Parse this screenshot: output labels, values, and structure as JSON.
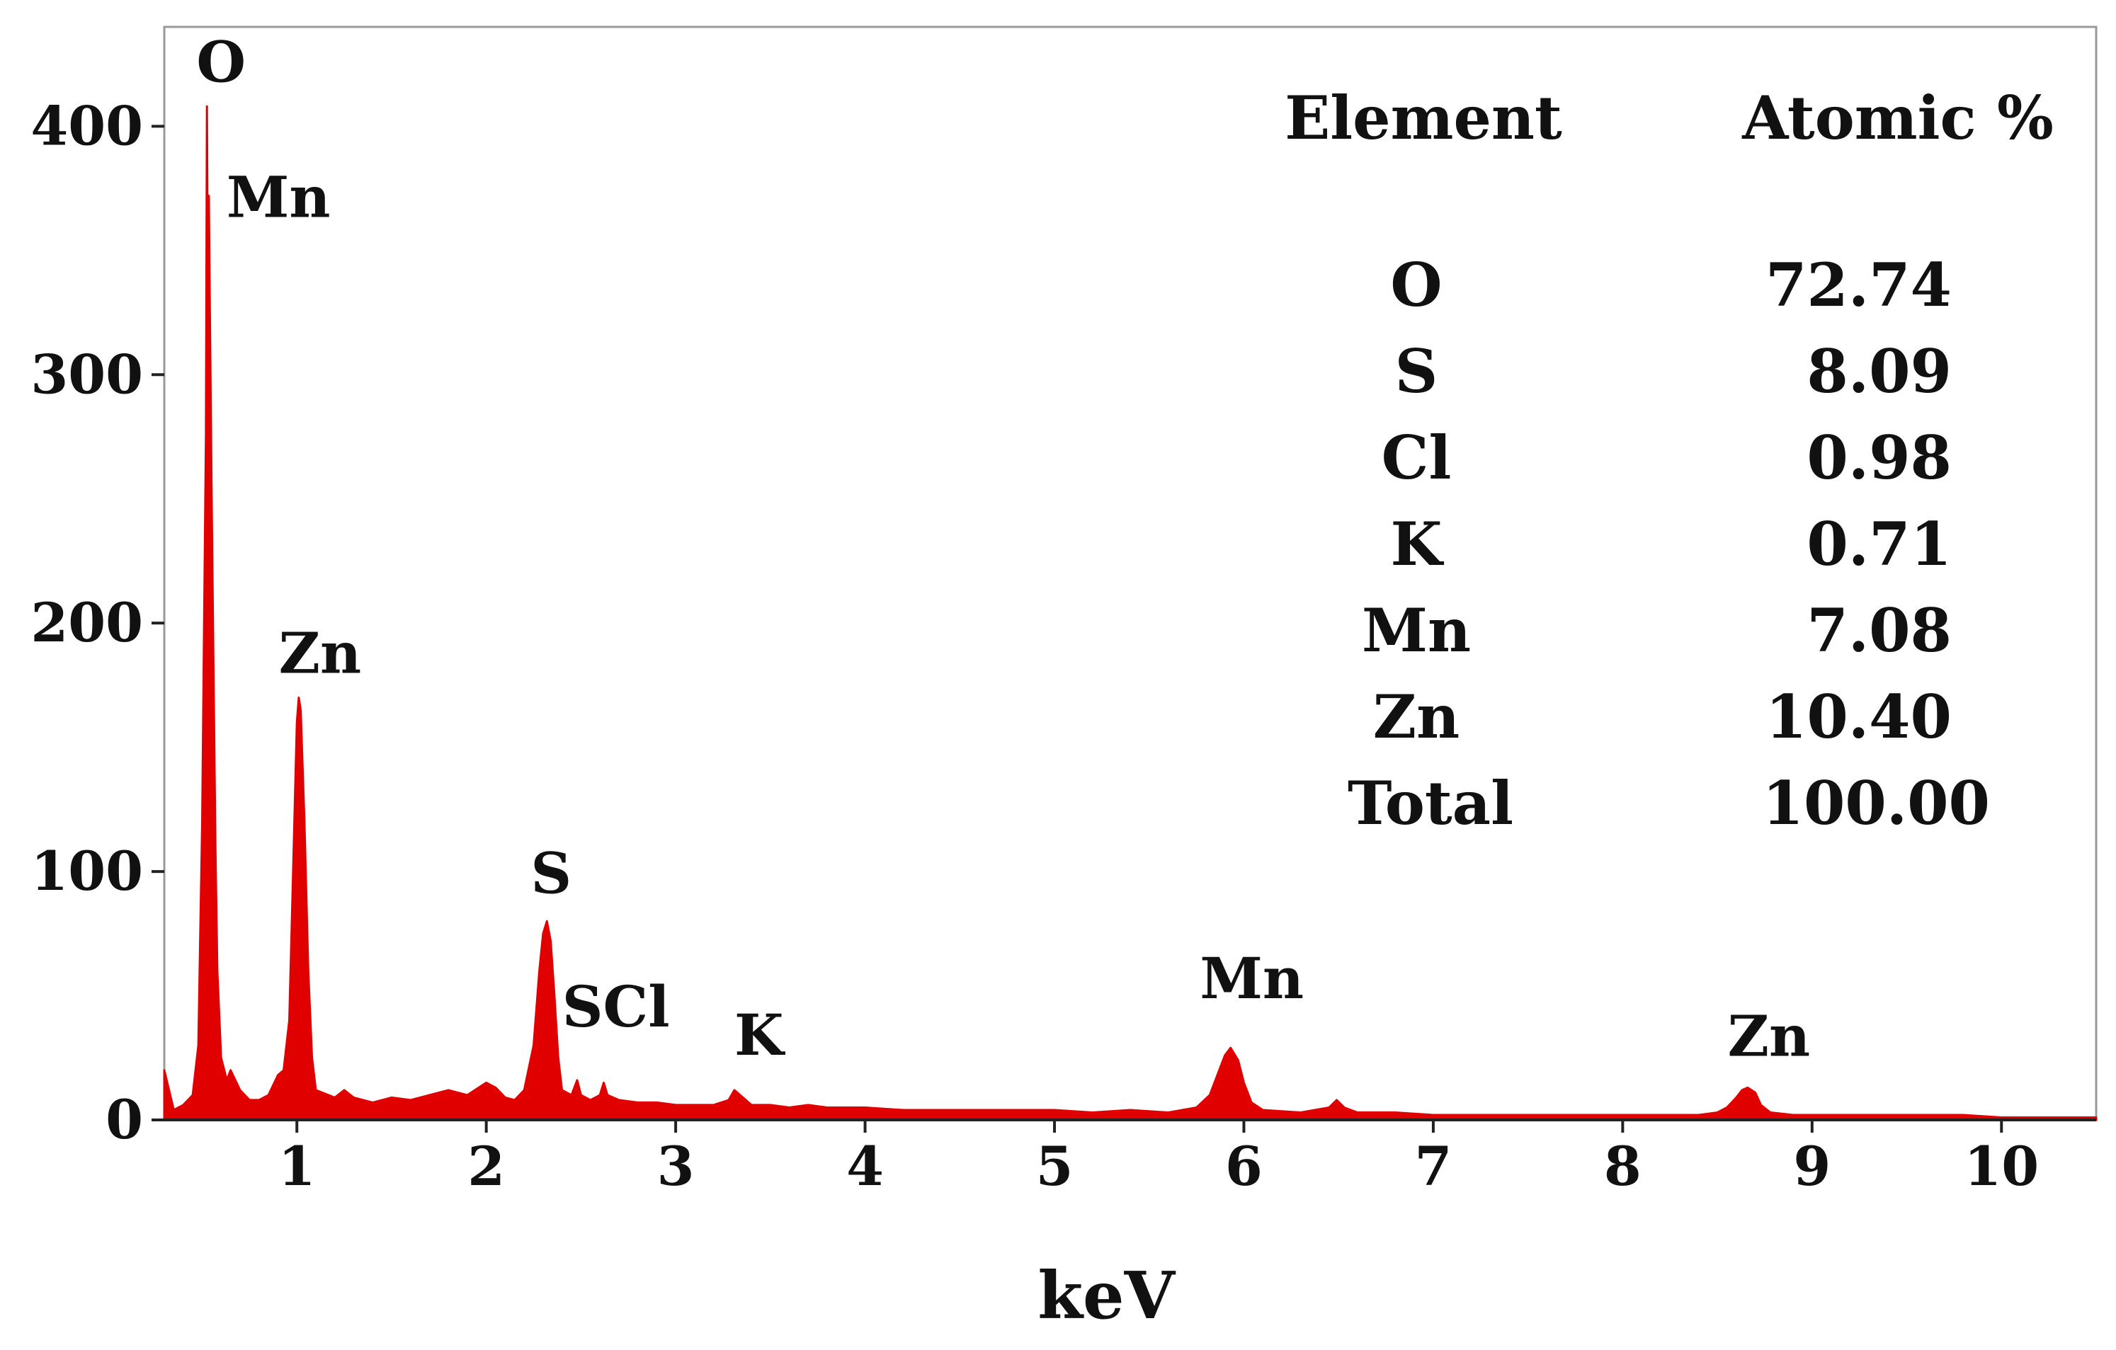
{
  "chart_data": {
    "type": "line",
    "title": "",
    "xlabel": "keV",
    "ylabel": "",
    "xlim": [
      0.3,
      10.5
    ],
    "ylim": [
      0,
      440
    ],
    "x_ticks": [
      "1",
      "2",
      "3",
      "4",
      "5",
      "6",
      "7",
      "8",
      "9",
      "10"
    ],
    "y_ticks": [
      "0",
      "100",
      "200",
      "300",
      "400"
    ],
    "series_color": "#e00000",
    "grid": false,
    "legend": "none",
    "spectrum": [
      [
        0.3,
        20
      ],
      [
        0.35,
        4
      ],
      [
        0.4,
        6
      ],
      [
        0.45,
        10
      ],
      [
        0.48,
        30
      ],
      [
        0.5,
        120
      ],
      [
        0.51,
        200
      ],
      [
        0.52,
        275
      ],
      [
        0.525,
        408
      ],
      [
        0.53,
        330
      ],
      [
        0.535,
        372
      ],
      [
        0.54,
        330
      ],
      [
        0.55,
        250
      ],
      [
        0.56,
        180
      ],
      [
        0.57,
        110
      ],
      [
        0.58,
        60
      ],
      [
        0.6,
        25
      ],
      [
        0.63,
        16
      ],
      [
        0.65,
        20
      ],
      [
        0.7,
        12
      ],
      [
        0.75,
        8
      ],
      [
        0.8,
        8
      ],
      [
        0.85,
        10
      ],
      [
        0.9,
        18
      ],
      [
        0.93,
        20
      ],
      [
        0.96,
        40
      ],
      [
        0.98,
        100
      ],
      [
        1.0,
        160
      ],
      [
        1.01,
        170
      ],
      [
        1.02,
        165
      ],
      [
        1.04,
        120
      ],
      [
        1.06,
        60
      ],
      [
        1.08,
        25
      ],
      [
        1.1,
        12
      ],
      [
        1.2,
        9
      ],
      [
        1.25,
        12
      ],
      [
        1.3,
        9
      ],
      [
        1.4,
        7
      ],
      [
        1.5,
        9
      ],
      [
        1.6,
        8
      ],
      [
        1.7,
        10
      ],
      [
        1.8,
        12
      ],
      [
        1.9,
        10
      ],
      [
        2.0,
        15
      ],
      [
        2.05,
        13
      ],
      [
        2.1,
        9
      ],
      [
        2.15,
        8
      ],
      [
        2.2,
        12
      ],
      [
        2.25,
        30
      ],
      [
        2.28,
        60
      ],
      [
        2.3,
        75
      ],
      [
        2.32,
        80
      ],
      [
        2.34,
        72
      ],
      [
        2.36,
        50
      ],
      [
        2.38,
        25
      ],
      [
        2.4,
        12
      ],
      [
        2.45,
        10
      ],
      [
        2.48,
        16
      ],
      [
        2.5,
        10
      ],
      [
        2.55,
        8
      ],
      [
        2.6,
        10
      ],
      [
        2.62,
        15
      ],
      [
        2.64,
        10
      ],
      [
        2.7,
        8
      ],
      [
        2.8,
        7
      ],
      [
        2.9,
        7
      ],
      [
        3.0,
        6
      ],
      [
        3.1,
        6
      ],
      [
        3.2,
        6
      ],
      [
        3.28,
        8
      ],
      [
        3.31,
        12
      ],
      [
        3.34,
        10
      ],
      [
        3.4,
        6
      ],
      [
        3.5,
        6
      ],
      [
        3.6,
        5
      ],
      [
        3.7,
        6
      ],
      [
        3.8,
        5
      ],
      [
        4.0,
        5
      ],
      [
        4.2,
        4
      ],
      [
        4.4,
        4
      ],
      [
        4.6,
        4
      ],
      [
        4.8,
        4
      ],
      [
        5.0,
        4
      ],
      [
        5.2,
        3
      ],
      [
        5.4,
        4
      ],
      [
        5.6,
        3
      ],
      [
        5.75,
        5
      ],
      [
        5.82,
        10
      ],
      [
        5.86,
        18
      ],
      [
        5.9,
        26
      ],
      [
        5.93,
        29
      ],
      [
        5.97,
        24
      ],
      [
        6.0,
        15
      ],
      [
        6.04,
        7
      ],
      [
        6.1,
        4
      ],
      [
        6.3,
        3
      ],
      [
        6.45,
        5
      ],
      [
        6.49,
        8
      ],
      [
        6.53,
        5
      ],
      [
        6.6,
        3
      ],
      [
        6.8,
        3
      ],
      [
        7.0,
        2
      ],
      [
        7.2,
        2
      ],
      [
        7.5,
        2
      ],
      [
        7.8,
        2
      ],
      [
        8.0,
        2
      ],
      [
        8.2,
        2
      ],
      [
        8.4,
        2
      ],
      [
        8.5,
        3
      ],
      [
        8.55,
        5
      ],
      [
        8.6,
        9
      ],
      [
        8.63,
        12
      ],
      [
        8.66,
        13
      ],
      [
        8.7,
        11
      ],
      [
        8.73,
        6
      ],
      [
        8.78,
        3
      ],
      [
        8.9,
        2
      ],
      [
        9.2,
        2
      ],
      [
        9.5,
        2
      ],
      [
        9.8,
        2
      ],
      [
        10.0,
        1
      ],
      [
        10.3,
        1
      ],
      [
        10.5,
        1
      ]
    ],
    "peak_labels": [
      {
        "text": "O",
        "x": 0.525,
        "y": 408
      },
      {
        "text": "Mn",
        "x": 0.535,
        "y": 372
      },
      {
        "text": "Zn",
        "x": 1.01,
        "y": 170
      },
      {
        "text": "S",
        "x": 2.32,
        "y": 80
      },
      {
        "text": "SCl",
        "x": 2.55,
        "y": 22
      },
      {
        "text": "K",
        "x": 3.31,
        "y": 12
      },
      {
        "text": "Mn",
        "x": 5.93,
        "y": 29
      },
      {
        "text": "Zn",
        "x": 8.66,
        "y": 13
      }
    ],
    "composition_table": {
      "headers": [
        "Element",
        "Atomic %"
      ],
      "rows": [
        {
          "element": "O",
          "value": "72.74"
        },
        {
          "element": "S",
          "value": "8.09"
        },
        {
          "element": "Cl",
          "value": "0.98"
        },
        {
          "element": "K",
          "value": "0.71"
        },
        {
          "element": "Mn",
          "value": "7.08"
        },
        {
          "element": "Zn",
          "value": "10.40"
        },
        {
          "element": "Total",
          "value": "100.00"
        }
      ]
    }
  }
}
